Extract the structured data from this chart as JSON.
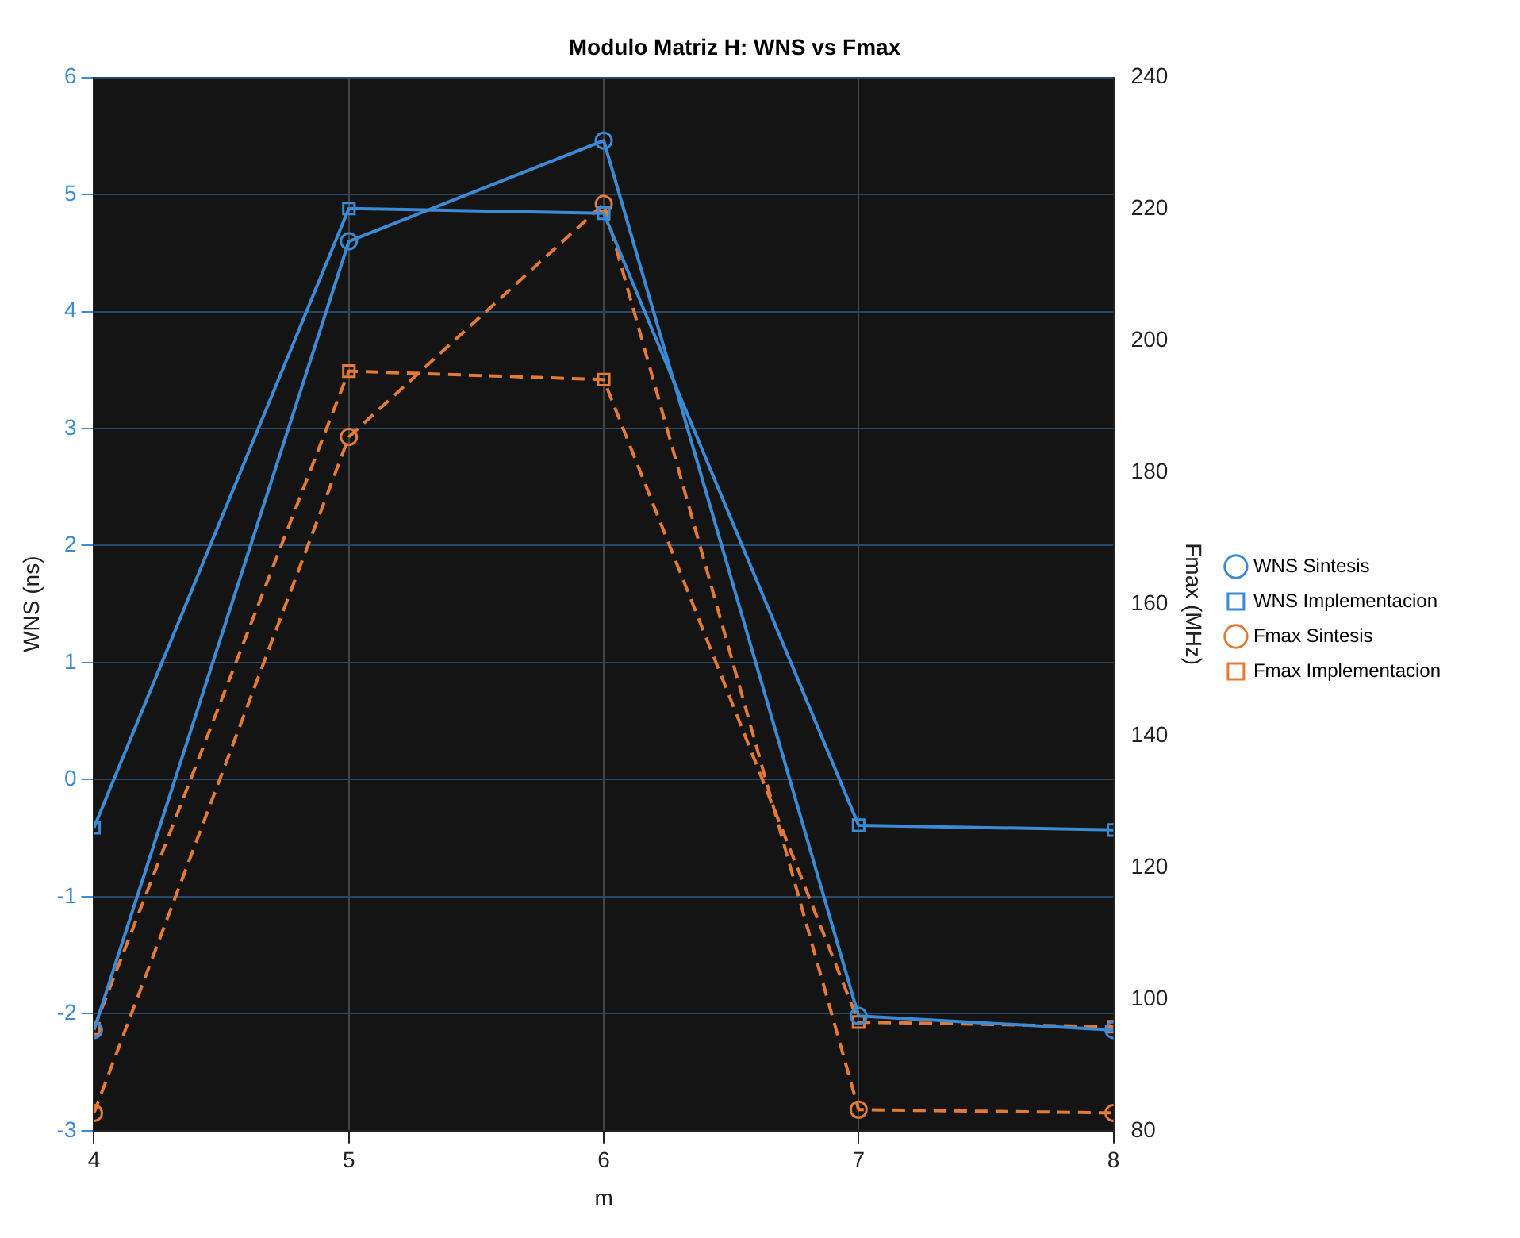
{
  "chart_data": {
    "type": "line",
    "title": "Modulo Matriz H: WNS vs Fmax",
    "xlabel": "m",
    "ylabel": "WNS (ns)",
    "y2label": "Fmax (MHz)",
    "x": [
      4,
      5,
      6,
      7,
      8
    ],
    "series": [
      {
        "name": "WNS Sintesis",
        "color": "#3a8ad6",
        "values": [
          -2.14,
          4.6,
          5.46,
          -2.02,
          -2.14
        ],
        "marker": "circle",
        "line_style": "solid"
      },
      {
        "name": "WNS Implementacion",
        "color": "#3a8ad6",
        "values": [
          -0.41,
          4.88,
          4.84,
          -0.39,
          -0.43
        ],
        "marker": "square",
        "line_style": "solid"
      },
      {
        "name": "Fmax Sintesis",
        "color": "#e57a34",
        "values": [
          82.7,
          185.4,
          220.8,
          83.2,
          82.7
        ],
        "marker": "circle",
        "line_style": "dashed",
        "axis": "y2"
      },
      {
        "name": "Fmax Implementacion",
        "color": "#e57a34",
        "values": [
          95.5,
          195.4,
          194.1,
          96.5,
          95.8
        ],
        "marker": "square",
        "line_style": "dashed",
        "axis": "y2"
      }
    ],
    "xlim": [
      4,
      8
    ],
    "xticks": [
      4,
      5,
      6,
      7,
      8
    ],
    "ylim": [
      -3,
      6
    ],
    "yticks": [
      -3,
      -2,
      -1,
      0,
      1,
      2,
      3,
      4,
      5,
      6
    ],
    "y2lim": [
      80,
      240
    ],
    "y2ticks": [
      80,
      100,
      120,
      140,
      160,
      180,
      200,
      220,
      240
    ],
    "grid": true,
    "legend": "right"
  }
}
